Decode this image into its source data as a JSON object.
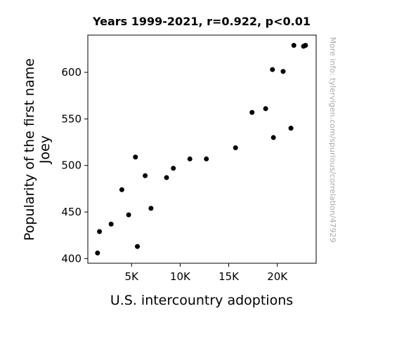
{
  "chart_data": {
    "type": "scatter",
    "title": "Years 1999-2021, r=0.922, p<0.01",
    "xlabel": "U.S. intercountry adoptions",
    "ylabel_lines": [
      "Popularity of the first name",
      "Joey"
    ],
    "watermark": "More info: tylervigen.com/spurious/correlation/47929",
    "xlim": [
      500,
      24000
    ],
    "ylim": [
      395,
      640
    ],
    "x_ticks": [
      {
        "value": 5000,
        "label": "5K"
      },
      {
        "value": 10000,
        "label": "10K"
      },
      {
        "value": 15000,
        "label": "15K"
      },
      {
        "value": 20000,
        "label": "20K"
      }
    ],
    "y_ticks": [
      {
        "value": 400,
        "label": "400"
      },
      {
        "value": 450,
        "label": "450"
      },
      {
        "value": 500,
        "label": "500"
      },
      {
        "value": 550,
        "label": "550"
      },
      {
        "value": 600,
        "label": "600"
      }
    ],
    "marker_color": "#000000",
    "points": [
      {
        "x": 1500,
        "y": 406
      },
      {
        "x": 1700,
        "y": 429
      },
      {
        "x": 2900,
        "y": 437
      },
      {
        "x": 4000,
        "y": 474
      },
      {
        "x": 4700,
        "y": 447
      },
      {
        "x": 5400,
        "y": 509
      },
      {
        "x": 5600,
        "y": 413
      },
      {
        "x": 6400,
        "y": 489
      },
      {
        "x": 7000,
        "y": 454
      },
      {
        "x": 8600,
        "y": 487
      },
      {
        "x": 9300,
        "y": 497
      },
      {
        "x": 11000,
        "y": 507
      },
      {
        "x": 12700,
        "y": 507
      },
      {
        "x": 15700,
        "y": 519
      },
      {
        "x": 17400,
        "y": 557
      },
      {
        "x": 18800,
        "y": 561
      },
      {
        "x": 19500,
        "y": 603
      },
      {
        "x": 19600,
        "y": 530
      },
      {
        "x": 20600,
        "y": 601
      },
      {
        "x": 21400,
        "y": 540
      },
      {
        "x": 21700,
        "y": 629
      },
      {
        "x": 22700,
        "y": 628
      },
      {
        "x": 22900,
        "y": 629
      }
    ]
  }
}
